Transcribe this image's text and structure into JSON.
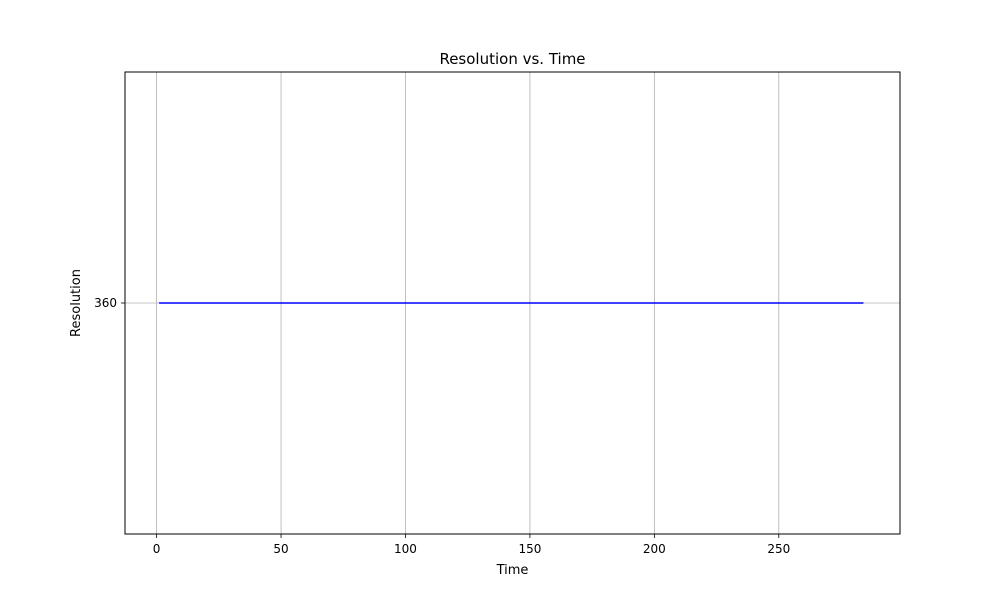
{
  "chart_data": {
    "type": "line",
    "title": "Resolution vs. Time",
    "xlabel": "Time",
    "ylabel": "Resolution",
    "xlim": [
      -12.7,
      298.7
    ],
    "ylim": [
      341.6,
      378.4
    ],
    "xticks": [
      0,
      50,
      100,
      150,
      200,
      250
    ],
    "yticks": [
      360
    ],
    "grid": true,
    "series": [
      {
        "color": "#0000ff",
        "x": [
          1,
          284
        ],
        "y": [
          360,
          360
        ]
      }
    ]
  }
}
